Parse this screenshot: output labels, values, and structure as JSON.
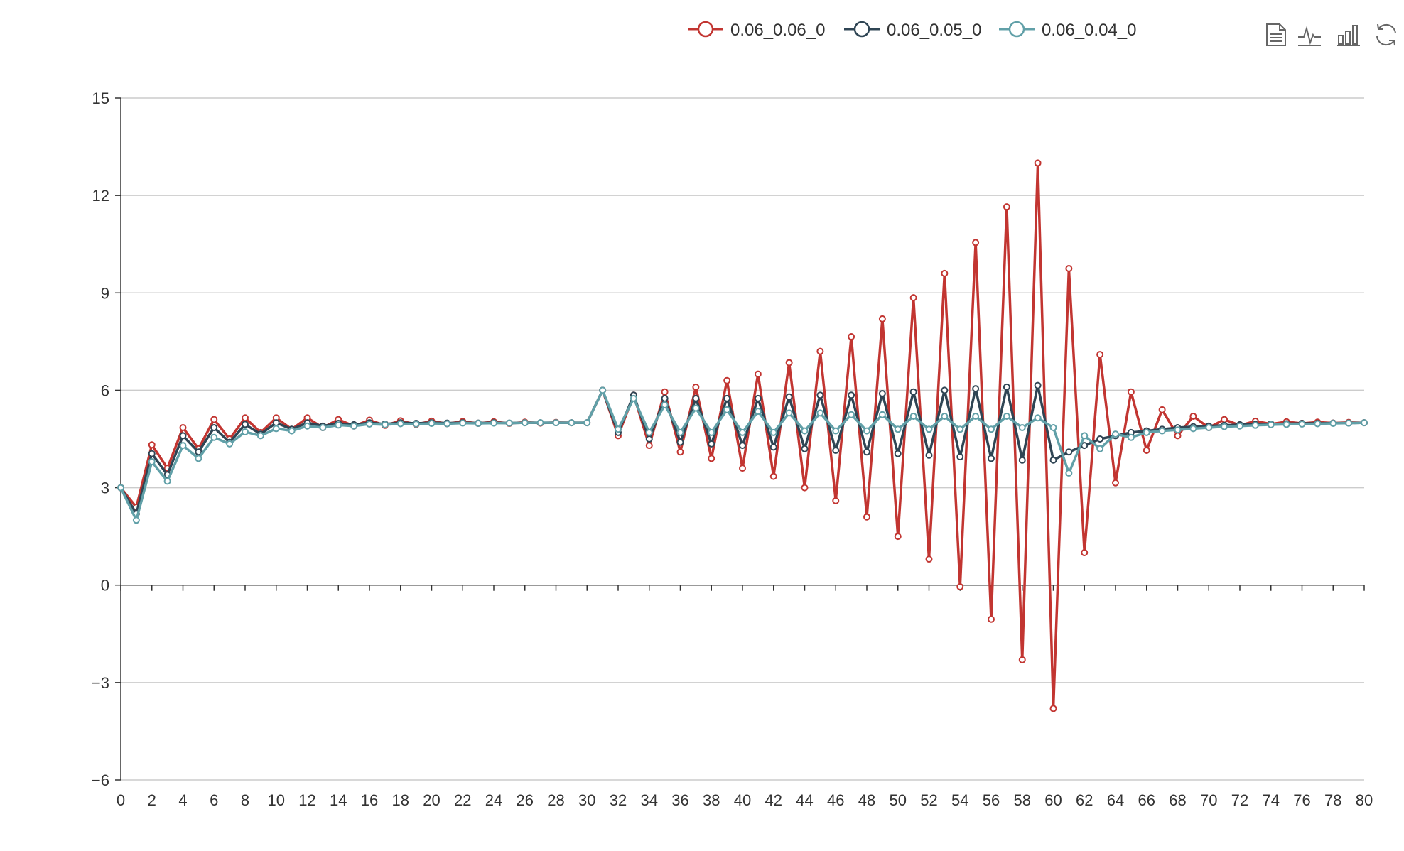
{
  "toolbox": {
    "icons": [
      "data-view-icon",
      "line-chart-icon",
      "bar-chart-icon",
      "restore-icon"
    ]
  },
  "chart_data": {
    "type": "line",
    "x": [
      0,
      1,
      2,
      3,
      4,
      5,
      6,
      7,
      8,
      9,
      10,
      11,
      12,
      13,
      14,
      15,
      16,
      17,
      18,
      19,
      20,
      21,
      22,
      23,
      24,
      25,
      26,
      27,
      28,
      29,
      30,
      31,
      32,
      33,
      34,
      35,
      36,
      37,
      38,
      39,
      40,
      41,
      42,
      43,
      44,
      45,
      46,
      47,
      48,
      49,
      50,
      51,
      52,
      53,
      54,
      55,
      56,
      57,
      58,
      59,
      60,
      61,
      62,
      63,
      64,
      65,
      66,
      67,
      68,
      69,
      70,
      71,
      72,
      73,
      74,
      75,
      76,
      77,
      78,
      79,
      80
    ],
    "xticks": [
      0,
      2,
      4,
      6,
      8,
      10,
      12,
      14,
      16,
      18,
      20,
      22,
      24,
      26,
      28,
      30,
      32,
      34,
      36,
      38,
      40,
      42,
      44,
      46,
      48,
      50,
      52,
      54,
      56,
      58,
      60,
      62,
      64,
      66,
      68,
      70,
      72,
      74,
      76,
      78,
      80
    ],
    "ylim": [
      -6,
      15
    ],
    "yticks": [
      -6,
      -3,
      0,
      3,
      6,
      9,
      12,
      15
    ],
    "ytick_labels": [
      "−6",
      "−3",
      "0",
      "3",
      "6",
      "9",
      "12",
      "15"
    ],
    "grid": true,
    "legend_position": "top-center",
    "series": [
      {
        "name": "0.06_0.06_0",
        "color": "#c23531",
        "values": [
          3.0,
          2.4,
          4.32,
          3.6,
          4.85,
          4.2,
          5.1,
          4.5,
          5.15,
          4.7,
          5.15,
          4.8,
          5.15,
          4.85,
          5.1,
          4.9,
          5.08,
          4.92,
          5.06,
          4.95,
          5.05,
          4.97,
          5.04,
          4.98,
          5.03,
          4.98,
          5.02,
          4.99,
          5.01,
          5.0,
          5.0,
          6.0,
          4.6,
          5.85,
          4.3,
          5.95,
          4.1,
          6.1,
          3.9,
          6.3,
          3.6,
          6.5,
          3.35,
          6.85,
          3.0,
          7.2,
          2.6,
          7.65,
          2.1,
          8.2,
          1.5,
          8.85,
          0.8,
          9.6,
          -0.05,
          10.55,
          -1.05,
          11.65,
          -2.3,
          13.0,
          -3.8,
          9.75,
          1.0,
          7.1,
          3.15,
          5.95,
          4.15,
          5.4,
          4.6,
          5.2,
          4.85,
          5.1,
          4.92,
          5.05,
          4.96,
          5.03,
          4.98,
          5.02,
          4.99,
          5.01,
          5.0
        ]
      },
      {
        "name": "0.06_0.05_0",
        "color": "#2f4554",
        "values": [
          3.0,
          2.2,
          4.05,
          3.4,
          4.6,
          4.1,
          4.85,
          4.4,
          4.95,
          4.65,
          5.0,
          4.8,
          5.0,
          4.9,
          4.98,
          4.94,
          5.0,
          4.96,
          5.0,
          4.98,
          5.0,
          4.99,
          5.0,
          4.99,
          5.0,
          4.99,
          5.0,
          5.0,
          5.0,
          5.0,
          5.0,
          6.0,
          4.7,
          5.85,
          4.5,
          5.75,
          4.4,
          5.75,
          4.35,
          5.75,
          4.3,
          5.75,
          4.25,
          5.8,
          4.2,
          5.85,
          4.15,
          5.85,
          4.1,
          5.9,
          4.05,
          5.95,
          4.0,
          6.0,
          3.95,
          6.05,
          3.9,
          6.1,
          3.85,
          6.15,
          3.85,
          4.1,
          4.3,
          4.5,
          4.6,
          4.7,
          4.75,
          4.8,
          4.85,
          4.88,
          4.9,
          4.92,
          4.94,
          4.95,
          4.96,
          4.97,
          4.98,
          4.98,
          4.99,
          4.99,
          5.0
        ]
      },
      {
        "name": "0.06_0.04_0",
        "color": "#61a0a8",
        "values": [
          3.0,
          2.0,
          3.8,
          3.2,
          4.3,
          3.9,
          4.55,
          4.35,
          4.72,
          4.6,
          4.82,
          4.75,
          4.9,
          4.85,
          4.93,
          4.9,
          4.96,
          4.94,
          4.97,
          4.96,
          4.98,
          4.97,
          4.99,
          4.98,
          4.99,
          4.99,
          5.0,
          5.0,
          5.0,
          5.0,
          5.0,
          6.0,
          4.8,
          5.75,
          4.7,
          5.55,
          4.7,
          5.45,
          4.7,
          5.4,
          4.7,
          5.35,
          4.7,
          5.3,
          4.75,
          5.3,
          4.75,
          5.25,
          4.75,
          5.25,
          4.8,
          5.2,
          4.8,
          5.2,
          4.8,
          5.2,
          4.8,
          5.2,
          4.85,
          5.15,
          4.85,
          3.45,
          4.6,
          4.2,
          4.65,
          4.55,
          4.7,
          4.75,
          4.78,
          4.82,
          4.85,
          4.88,
          4.9,
          4.92,
          4.94,
          4.95,
          4.96,
          4.97,
          4.98,
          4.99,
          5.0
        ]
      }
    ]
  }
}
